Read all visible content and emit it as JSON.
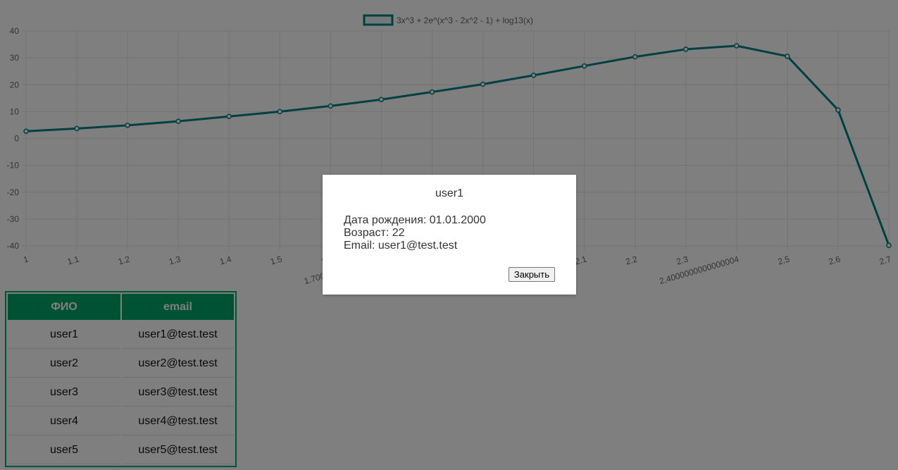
{
  "chart_data": {
    "type": "line",
    "legend": "3x^3 + 2e^(x^3 - 2x^2 - 1) + log13(x)",
    "legend_position": "top",
    "x": [
      "1",
      "1.1",
      "1.2",
      "1.3",
      "1.4",
      "1.5",
      "1.6",
      "1.7000000000000002",
      "1.8",
      "1.9",
      "2",
      "2.1",
      "2.2",
      "2.3",
      "2.4000000000000004",
      "2.5",
      "2.6",
      "2.7"
    ],
    "x_tick_labels_visible": [
      "1",
      "1.1",
      "1.2",
      "1.3",
      "1.4",
      "1.5",
      "1.7000000000000002",
      "2.1",
      "2.2",
      "2.3",
      "2.4000000000000004",
      "2.5",
      "2.6",
      "2.7"
    ],
    "y": [
      2.7,
      3.7,
      4.9,
      6.4,
      8.2,
      10.0,
      12.1,
      14.5,
      17.3,
      20.2,
      23.5,
      27.0,
      30.4,
      33.2,
      34.5,
      30.6,
      10.6,
      -39.8
    ],
    "ylim": [
      -40,
      40
    ],
    "y_ticks": [
      "40",
      "30",
      "20",
      "10",
      "0",
      "-10",
      "-20",
      "-30",
      "-40"
    ],
    "grid": true,
    "color": "#008080"
  },
  "table": {
    "headers": [
      "ФИО",
      "email"
    ],
    "rows": [
      [
        "user1",
        "user1@test.test"
      ],
      [
        "user2",
        "user2@test.test"
      ],
      [
        "user3",
        "user3@test.test"
      ],
      [
        "user4",
        "user4@test.test"
      ],
      [
        "user5",
        "user5@test.test"
      ]
    ],
    "header_color": "#00a56b"
  },
  "modal": {
    "title": "user1",
    "birth": "Дата рождения: 01.01.2000",
    "age": "Возраст: 22",
    "email": "Email: user1@test.test",
    "close_label": "Закрыть"
  }
}
